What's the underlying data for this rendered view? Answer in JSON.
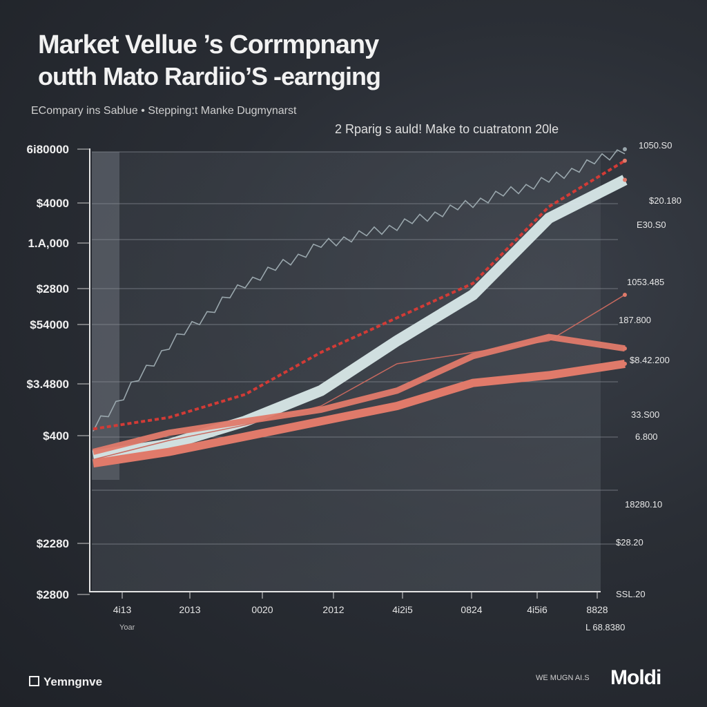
{
  "header": {
    "title_line1": "Market Vellue ’s Corrmpnany",
    "title_line2": "outth Mato Rardiio’S -earnging",
    "subtitle": "ECompary ins Sablue  •  Stepping:t Manke Dugmynarst",
    "note": "2 Rparig s auld! Make to cuatratonn 20le"
  },
  "footer": {
    "left_label": "Yemngnve",
    "tag": "WE MUGN AI.S",
    "brand": "Moldi"
  },
  "colors": {
    "background": "#2a2e35",
    "axis": "#e6e6e6",
    "grid": "#8a8f97",
    "gray_line": "#9aa7ad",
    "light_band": "#d8e8e8",
    "salmon": "#e07a6a",
    "red_dashed": "#d23b36",
    "thin_red": "#c8695f",
    "panel": "#4a4f57"
  },
  "chart_data": {
    "type": "line",
    "title": "",
    "xlabel": "Yoar",
    "ylabel": "",
    "x_tick_labels": [
      "4i13",
      "2013",
      "0020",
      "2012",
      "4i2i5",
      "0824",
      "4i5i6",
      "8828"
    ],
    "y_tick_labels": [
      "6i80000",
      "$4000",
      "1.A,000",
      "$2800",
      "$54000",
      "$3.4800",
      "$400",
      "$2280",
      "$2800"
    ],
    "right_labels": [
      "1050.S0",
      "$20.180",
      "E30.S0",
      "1053.485",
      "187.800",
      "$8.42.200",
      "33.S00",
      "6.800",
      "18280.10",
      "$28.20",
      "SSL.20",
      "L 68.8380"
    ],
    "x": [
      0,
      1,
      2,
      3,
      4,
      5,
      6,
      7
    ],
    "ylim": [
      0,
      100
    ],
    "grid": true,
    "legend": "none",
    "series": [
      {
        "style": "gray-jagged",
        "values": [
          25,
          47,
          63,
          73,
          78,
          84,
          90,
          98
        ]
      },
      {
        "style": "red-dashed",
        "values": [
          25,
          28,
          34,
          45,
          54,
          63,
          83,
          95
        ]
      },
      {
        "style": "light-band",
        "values": [
          18,
          21,
          27,
          35,
          48,
          60,
          80,
          90
        ]
      },
      {
        "style": "salmon-thick-upper",
        "values": [
          19,
          24,
          27,
          30,
          35,
          44,
          49,
          46
        ]
      },
      {
        "style": "salmon-thick-lower",
        "values": [
          16,
          19,
          23,
          27,
          31,
          37,
          39,
          42
        ]
      },
      {
        "style": "thin-red",
        "values": [
          17,
          22,
          26,
          31,
          42,
          45,
          48,
          60
        ]
      }
    ]
  }
}
